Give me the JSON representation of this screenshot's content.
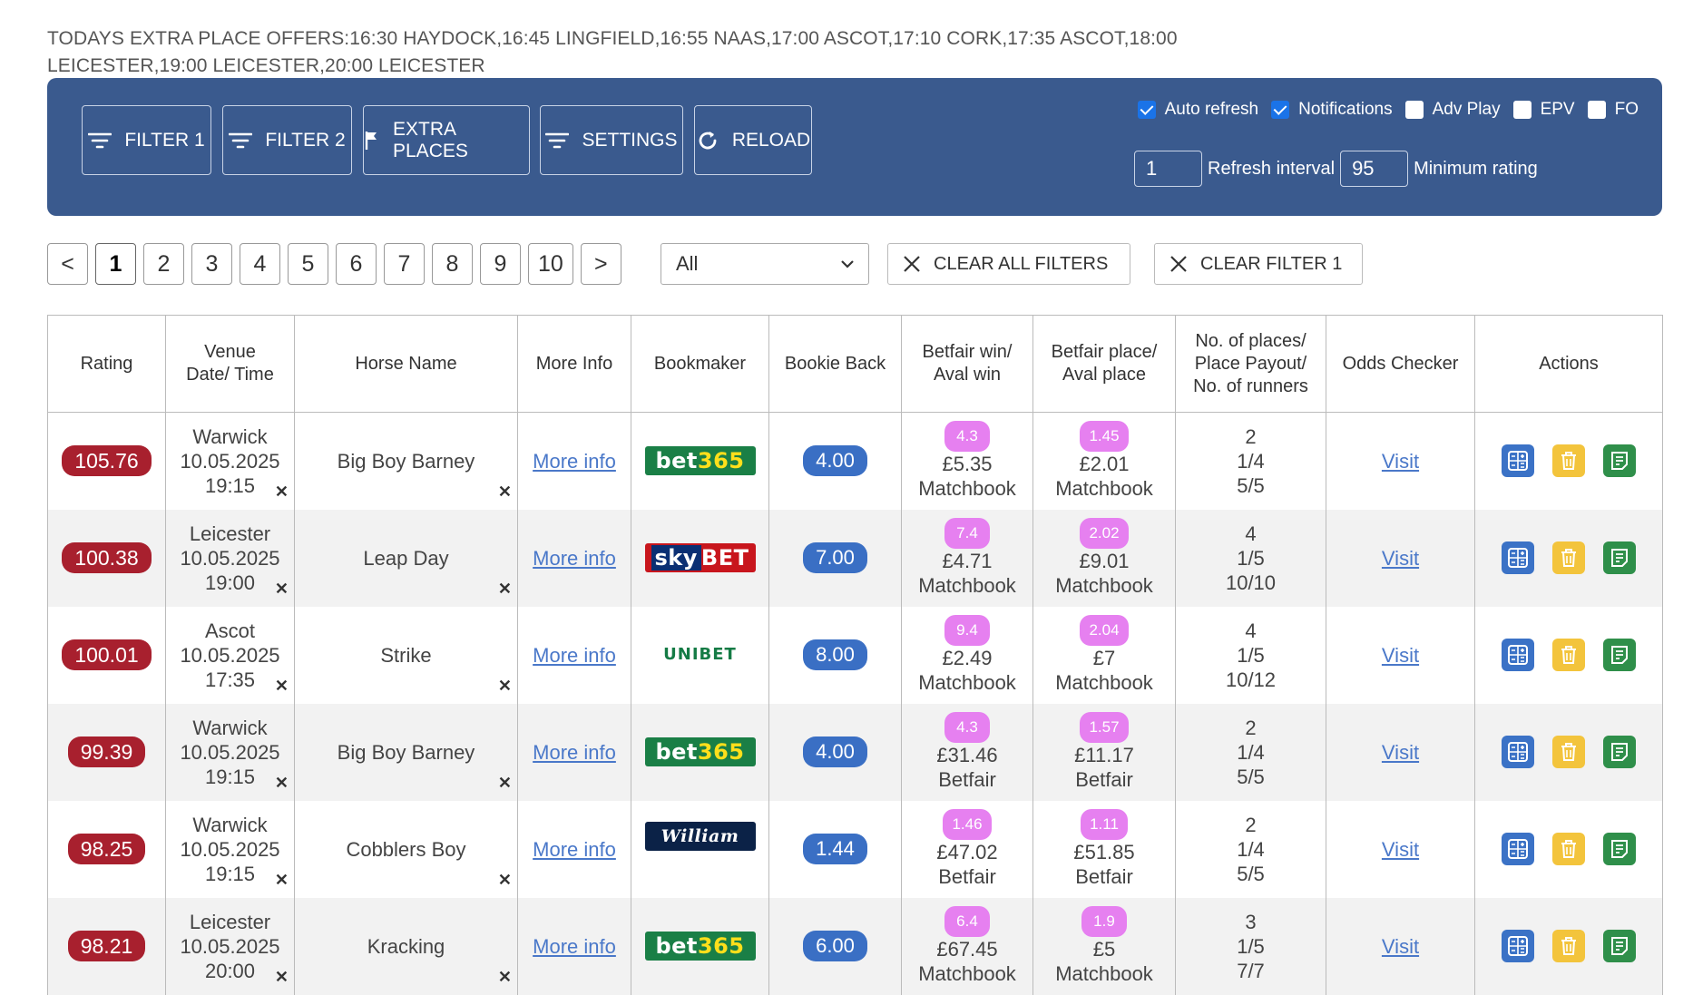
{
  "offers": {
    "text": "TODAYS EXTRA PLACE OFFERS:16:30 HAYDOCK,16:45 LINGFIELD,16:55 NAAS,17:00 ASCOT,17:10 CORK,17:35 ASCOT,18:00 LEICESTER,19:00 LEICESTER,20:00 LEICESTER"
  },
  "toolbar": {
    "buttons": [
      {
        "label": "FILTER 1",
        "icon": "filter-icon"
      },
      {
        "label": "FILTER 2",
        "icon": "filter-icon"
      },
      {
        "label": "EXTRA PLACES",
        "icon": "flag-icon"
      },
      {
        "label": "SETTINGS",
        "icon": "filter-icon"
      },
      {
        "label": "RELOAD",
        "icon": "reload-icon"
      }
    ],
    "checkboxes": [
      {
        "label": "Auto refresh",
        "checked": true
      },
      {
        "label": "Notifications",
        "checked": true
      },
      {
        "label": "Adv Play",
        "checked": false
      },
      {
        "label": "EPV",
        "checked": false
      },
      {
        "label": "FO",
        "checked": false
      }
    ],
    "refresh_interval_value": "1",
    "refresh_interval_label": "Refresh interval",
    "min_rating_value": "95",
    "min_rating_label": "Minimum rating"
  },
  "pager": {
    "prev": "<",
    "next": ">",
    "pages": [
      "1",
      "2",
      "3",
      "4",
      "5",
      "6",
      "7",
      "8",
      "9",
      "10"
    ],
    "active": "1"
  },
  "filter_select": {
    "value": "All"
  },
  "clear_all_label": "CLEAR ALL FILTERS",
  "clear_filter1_label": "CLEAR FILTER 1",
  "table": {
    "headers": {
      "rating": "Rating",
      "venue_l1": "Venue",
      "venue_l2": "Date/ Time",
      "horse": "Horse Name",
      "more": "More Info",
      "bookmaker": "Bookmaker",
      "back": "Bookie Back",
      "bf_win_l1": "Betfair win/",
      "bf_win_l2": "Aval win",
      "bf_place_l1": "Betfair place/",
      "bf_place_l2": "Aval place",
      "places_l1": "No. of places/",
      "places_l2": "Place Payout/",
      "places_l3": "No. of runners",
      "odds": "Odds Checker",
      "actions": "Actions"
    },
    "rows": [
      {
        "rating": "105.76",
        "venue": "Warwick",
        "date": "10.05.2025",
        "time": "19:15",
        "horse": "Big Boy Barney",
        "more": "More info",
        "bookmaker": "bet365",
        "back": "4.00",
        "win_odds": "4.3",
        "win_aval": "£5.35",
        "win_src": "Matchbook",
        "place_odds": "1.45",
        "place_aval": "£2.01",
        "place_src": "Matchbook",
        "places": "2",
        "payout": "1/4",
        "runners": "5/5",
        "odds": "Visit"
      },
      {
        "rating": "100.38",
        "venue": "Leicester",
        "date": "10.05.2025",
        "time": "19:00",
        "horse": "Leap Day",
        "more": "More info",
        "bookmaker": "skybet",
        "back": "7.00",
        "win_odds": "7.4",
        "win_aval": "£4.71",
        "win_src": "Matchbook",
        "place_odds": "2.02",
        "place_aval": "£9.01",
        "place_src": "Matchbook",
        "places": "4",
        "payout": "1/5",
        "runners": "10/10",
        "odds": "Visit"
      },
      {
        "rating": "100.01",
        "venue": "Ascot",
        "date": "10.05.2025",
        "time": "17:35",
        "horse": "Strike",
        "more": "More info",
        "bookmaker": "unibet",
        "back": "8.00",
        "win_odds": "9.4",
        "win_aval": "£2.49",
        "win_src": "Matchbook",
        "place_odds": "2.04",
        "place_aval": "£7",
        "place_src": "Matchbook",
        "places": "4",
        "payout": "1/5",
        "runners": "10/12",
        "odds": "Visit"
      },
      {
        "rating": "99.39",
        "venue": "Warwick",
        "date": "10.05.2025",
        "time": "19:15",
        "horse": "Big Boy Barney",
        "more": "More info",
        "bookmaker": "bet365",
        "back": "4.00",
        "win_odds": "4.3",
        "win_aval": "£31.46",
        "win_src": "Betfair",
        "place_odds": "1.57",
        "place_aval": "£11.17",
        "place_src": "Betfair",
        "places": "2",
        "payout": "1/4",
        "runners": "5/5",
        "odds": "Visit"
      },
      {
        "rating": "98.25",
        "venue": "Warwick",
        "date": "10.05.2025",
        "time": "19:15",
        "horse": "Cobblers Boy",
        "more": "More info",
        "bookmaker": "williamhill",
        "back": "1.44",
        "win_odds": "1.46",
        "win_aval": "£47.02",
        "win_src": "Betfair",
        "place_odds": "1.11",
        "place_aval": "£51.85",
        "place_src": "Betfair",
        "places": "2",
        "payout": "1/4",
        "runners": "5/5",
        "odds": "Visit"
      },
      {
        "rating": "98.21",
        "venue": "Leicester",
        "date": "10.05.2025",
        "time": "20:00",
        "horse": "Kracking",
        "more": "More info",
        "bookmaker": "bet365",
        "back": "6.00",
        "win_odds": "6.4",
        "win_aval": "£67.45",
        "win_src": "Matchbook",
        "place_odds": "1.9",
        "place_aval": "£5",
        "place_src": "Matchbook",
        "places": "3",
        "payout": "1/5",
        "runners": "7/7",
        "odds": "Visit"
      }
    ]
  },
  "logos": {
    "bet365_a": "bet",
    "bet365_b": "365",
    "sky_a": "sky",
    "sky_b": "BET",
    "unibet": "UNIBET",
    "williamhill": "William HILL"
  },
  "colors": {
    "toolbar": "#3a5a8e",
    "rating": "#a8202e",
    "bookie_back": "#3a6fc4",
    "odds_pill": "#e680f0",
    "link": "#4a78c9"
  }
}
